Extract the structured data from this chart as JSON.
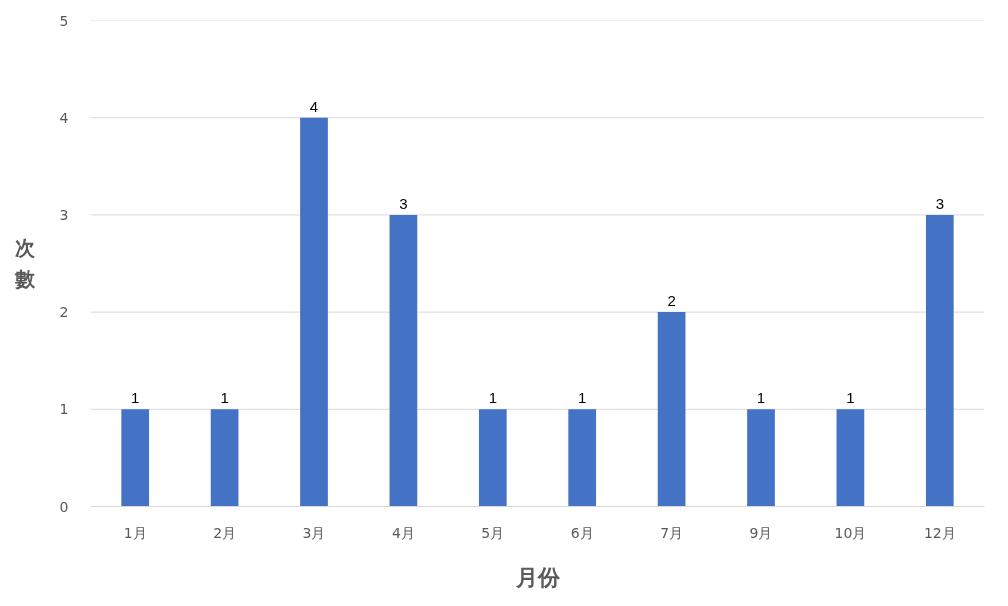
{
  "chart_data": {
    "type": "bar",
    "xlabel": "月份",
    "ylabel": "次數",
    "categories": [
      "1月",
      "2月",
      "3月",
      "4月",
      "5月",
      "6月",
      "7月",
      "9月",
      "10月",
      "12月"
    ],
    "values": [
      1,
      1,
      4,
      3,
      1,
      1,
      2,
      1,
      1,
      3
    ],
    "color": "#4472c4",
    "ylim": [
      0,
      5
    ],
    "yticks": [
      0,
      1,
      2,
      3,
      4,
      5
    ],
    "grid": "y",
    "data_labels": true
  }
}
